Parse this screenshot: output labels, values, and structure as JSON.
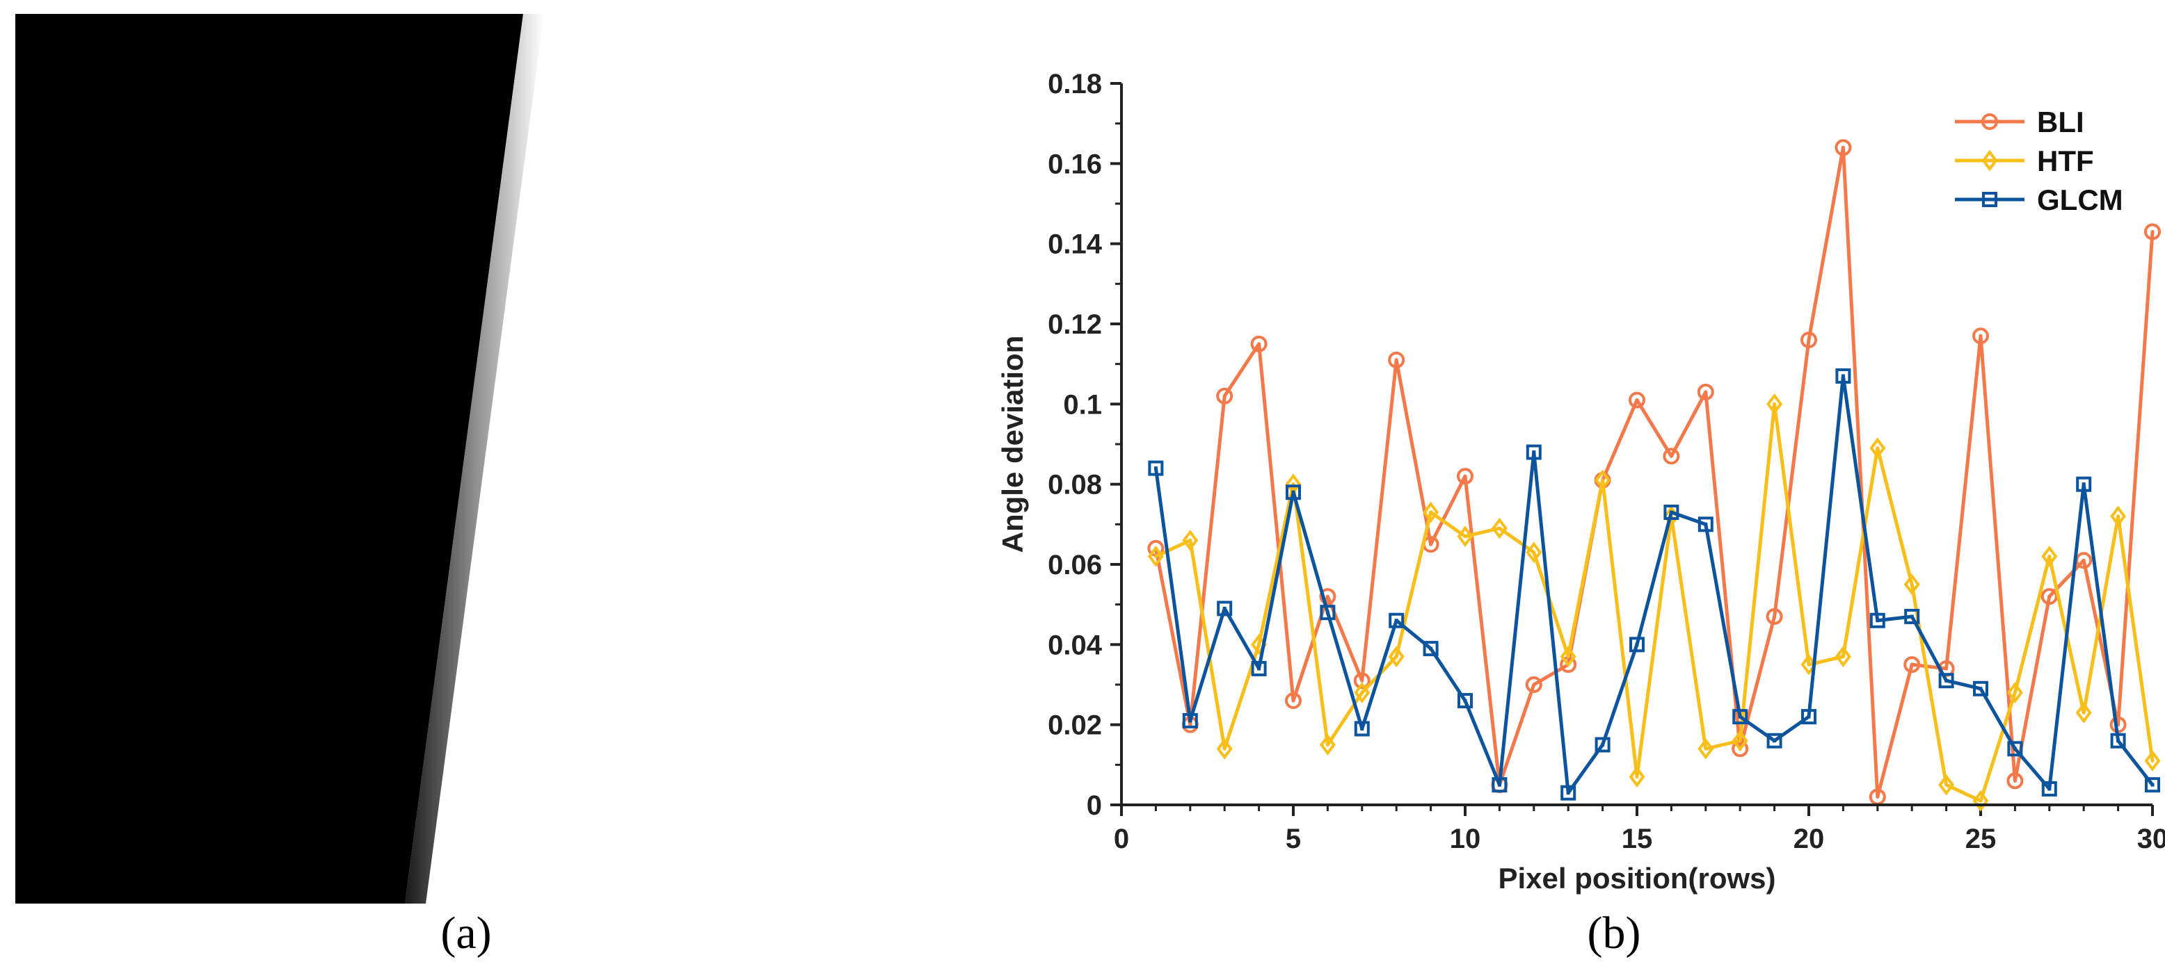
{
  "panel_a": {
    "caption": "(a)"
  },
  "panel_b": {
    "caption": "(b)"
  },
  "chart_data": {
    "type": "line",
    "title": "",
    "xlabel": "Pixel position(rows)",
    "ylabel": "Angle deviation",
    "xlim": [
      0,
      30
    ],
    "ylim": [
      0,
      0.18
    ],
    "xticks": [
      0,
      5,
      10,
      15,
      20,
      25,
      30
    ],
    "yticks": [
      0,
      0.02,
      0.04,
      0.06,
      0.08,
      0.1,
      0.12,
      0.14,
      0.16,
      0.18
    ],
    "ytick_labels": [
      "0",
      "0.02",
      "0.04",
      "0.06",
      "0.08",
      "0.1",
      "0.12",
      "0.14",
      "0.16",
      "0.18"
    ],
    "legend_position": "top-right",
    "grid": false,
    "x": [
      1,
      2,
      3,
      4,
      5,
      6,
      7,
      8,
      9,
      10,
      11,
      12,
      13,
      14,
      15,
      16,
      17,
      18,
      19,
      20,
      21,
      22,
      23,
      24,
      25,
      26,
      27,
      28,
      29,
      30
    ],
    "series": [
      {
        "name": "BLI",
        "color": "#F4794A",
        "marker": "circle",
        "values": [
          0.064,
          0.02,
          0.102,
          0.115,
          0.026,
          0.052,
          0.031,
          0.111,
          0.065,
          0.082,
          0.005,
          0.03,
          0.035,
          0.081,
          0.101,
          0.087,
          0.103,
          0.014,
          0.047,
          0.116,
          0.164,
          0.002,
          0.035,
          0.034,
          0.117,
          0.006,
          0.052,
          0.061,
          0.02,
          0.143
        ]
      },
      {
        "name": "HTF",
        "color": "#F8BE1A",
        "marker": "diamond",
        "values": [
          0.062,
          0.066,
          0.014,
          0.04,
          0.08,
          0.015,
          0.028,
          0.037,
          0.073,
          0.067,
          0.069,
          0.063,
          0.037,
          0.081,
          0.007,
          0.072,
          0.014,
          0.016,
          0.1,
          0.035,
          0.037,
          0.089,
          0.055,
          0.005,
          0.001,
          0.028,
          0.062,
          0.023,
          0.072,
          0.011
        ]
      },
      {
        "name": "GLCM",
        "color": "#0C559E",
        "marker": "square",
        "values": [
          0.084,
          0.021,
          0.049,
          0.034,
          0.078,
          0.048,
          0.019,
          0.046,
          0.039,
          0.026,
          0.005,
          0.088,
          0.003,
          0.015,
          0.04,
          0.073,
          0.07,
          0.022,
          0.016,
          0.022,
          0.107,
          0.046,
          0.047,
          0.031,
          0.029,
          0.014,
          0.004,
          0.08,
          0.016,
          0.005
        ]
      }
    ]
  }
}
